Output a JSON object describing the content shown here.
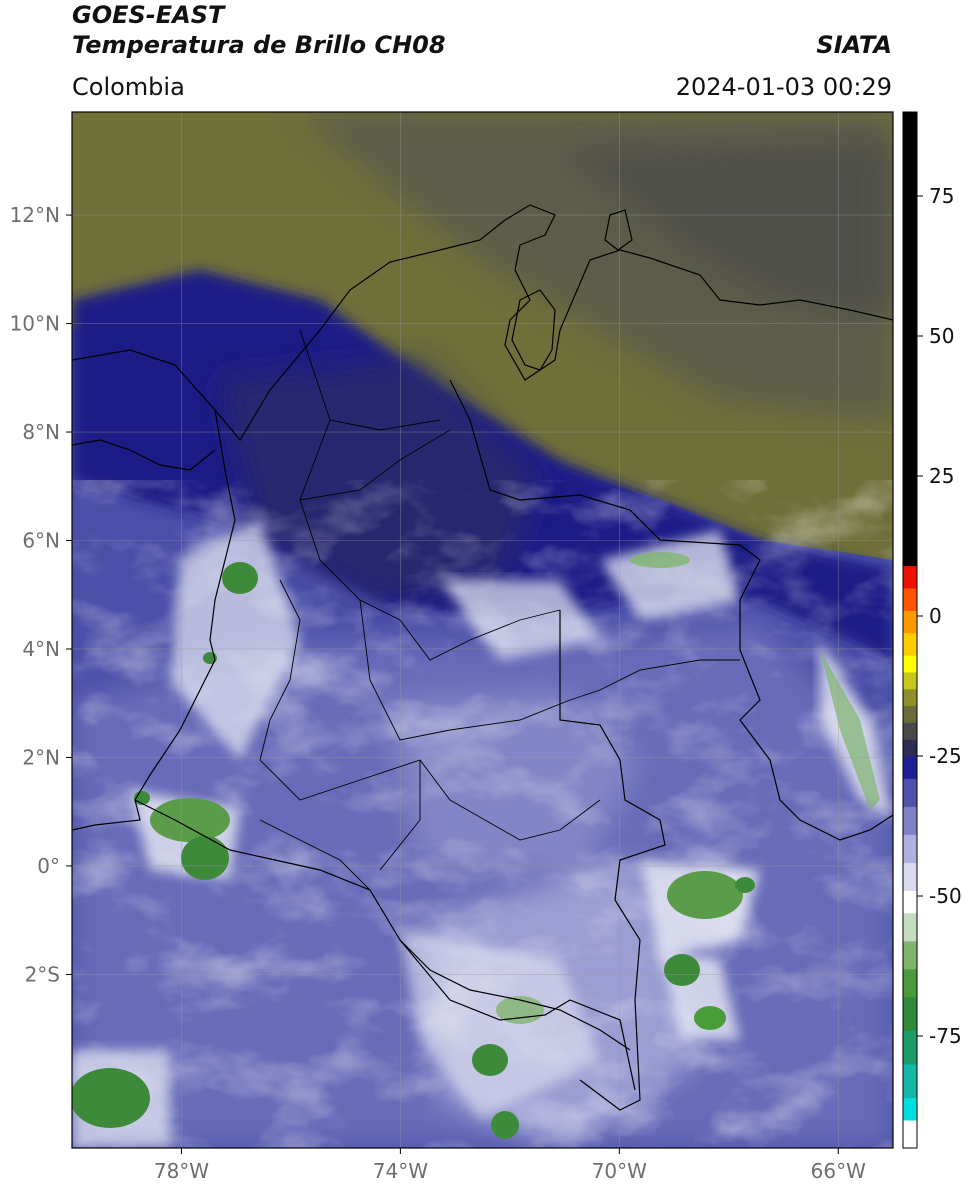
{
  "header": {
    "satellite": "GOES-EAST",
    "product": "Temperatura de Brillo CH08",
    "region": "Colombia",
    "organization": "SIATA",
    "datetime": "2024-01-03 00:29"
  },
  "map": {
    "lon_range": [
      -80,
      -65
    ],
    "lat_range": [
      -5.2,
      13.9
    ],
    "lat_ticks": [
      {
        "value": 12,
        "label": "12°N"
      },
      {
        "value": 10,
        "label": "10°N"
      },
      {
        "value": 8,
        "label": "8°N"
      },
      {
        "value": 6,
        "label": "6°N"
      },
      {
        "value": 4,
        "label": "4°N"
      },
      {
        "value": 2,
        "label": "2°N"
      },
      {
        "value": 0,
        "label": "0°"
      },
      {
        "value": -2,
        "label": "2°S"
      }
    ],
    "lon_ticks": [
      {
        "value": -78,
        "label": "78°W"
      },
      {
        "value": -74,
        "label": "74°W"
      },
      {
        "value": -70,
        "label": "70°W"
      },
      {
        "value": -66,
        "label": "66°W"
      }
    ],
    "colors": {
      "dry_olive": "#6f6f3a",
      "dry_gray": "#4c4c4c",
      "navy": "#1c1e86",
      "blue_mid": "#4a4fa8",
      "lavender": "#8f92cc",
      "cold_white": "#e8eaf4",
      "cold_green": "#3d8a3a"
    }
  },
  "colorbar": {
    "range": [
      -95,
      90
    ],
    "ticks": [
      {
        "value": 75,
        "label": "75"
      },
      {
        "value": 50,
        "label": "50"
      },
      {
        "value": 25,
        "label": "25"
      },
      {
        "value": 0,
        "label": "0"
      },
      {
        "value": -25,
        "label": "-25"
      },
      {
        "value": -50,
        "label": "-50"
      },
      {
        "value": -75,
        "label": "-75"
      }
    ],
    "segments": [
      {
        "from": -95,
        "to": -90,
        "color": "#ffffff"
      },
      {
        "from": -90,
        "to": -86,
        "color": "#00e0e0"
      },
      {
        "from": -86,
        "to": -80,
        "color": "#14b8a8"
      },
      {
        "from": -80,
        "to": -74,
        "color": "#1e9c6a"
      },
      {
        "from": -74,
        "to": -68,
        "color": "#2f8a3a"
      },
      {
        "from": -68,
        "to": -63,
        "color": "#4a9c3a"
      },
      {
        "from": -63,
        "to": -58,
        "color": "#7fb56f"
      },
      {
        "from": -58,
        "to": -53,
        "color": "#c4dcbf"
      },
      {
        "from": -53,
        "to": -49,
        "color": "#ffffff"
      },
      {
        "from": -49,
        "to": -44,
        "color": "#d9daf0"
      },
      {
        "from": -44,
        "to": -39,
        "color": "#aeb0dd"
      },
      {
        "from": -39,
        "to": -34,
        "color": "#7f82c6"
      },
      {
        "from": -34,
        "to": -29,
        "color": "#4f52ad"
      },
      {
        "from": -29,
        "to": -25,
        "color": "#1d1f96"
      },
      {
        "from": -25,
        "to": -22,
        "color": "#2d2d55"
      },
      {
        "from": -22,
        "to": -19,
        "color": "#4a4a4a"
      },
      {
        "from": -19,
        "to": -16,
        "color": "#6a6a3a"
      },
      {
        "from": -16,
        "to": -13,
        "color": "#8e8e2c"
      },
      {
        "from": -13,
        "to": -10,
        "color": "#c8c81c"
      },
      {
        "from": -10,
        "to": -7,
        "color": "#ffff00"
      },
      {
        "from": -7,
        "to": -3,
        "color": "#ffcc00"
      },
      {
        "from": -3,
        "to": 1,
        "color": "#ff9900"
      },
      {
        "from": 1,
        "to": 5,
        "color": "#ff5500"
      },
      {
        "from": 5,
        "to": 9,
        "color": "#ee1100"
      },
      {
        "from": 9,
        "to": 90,
        "color": "#000000"
      }
    ]
  }
}
